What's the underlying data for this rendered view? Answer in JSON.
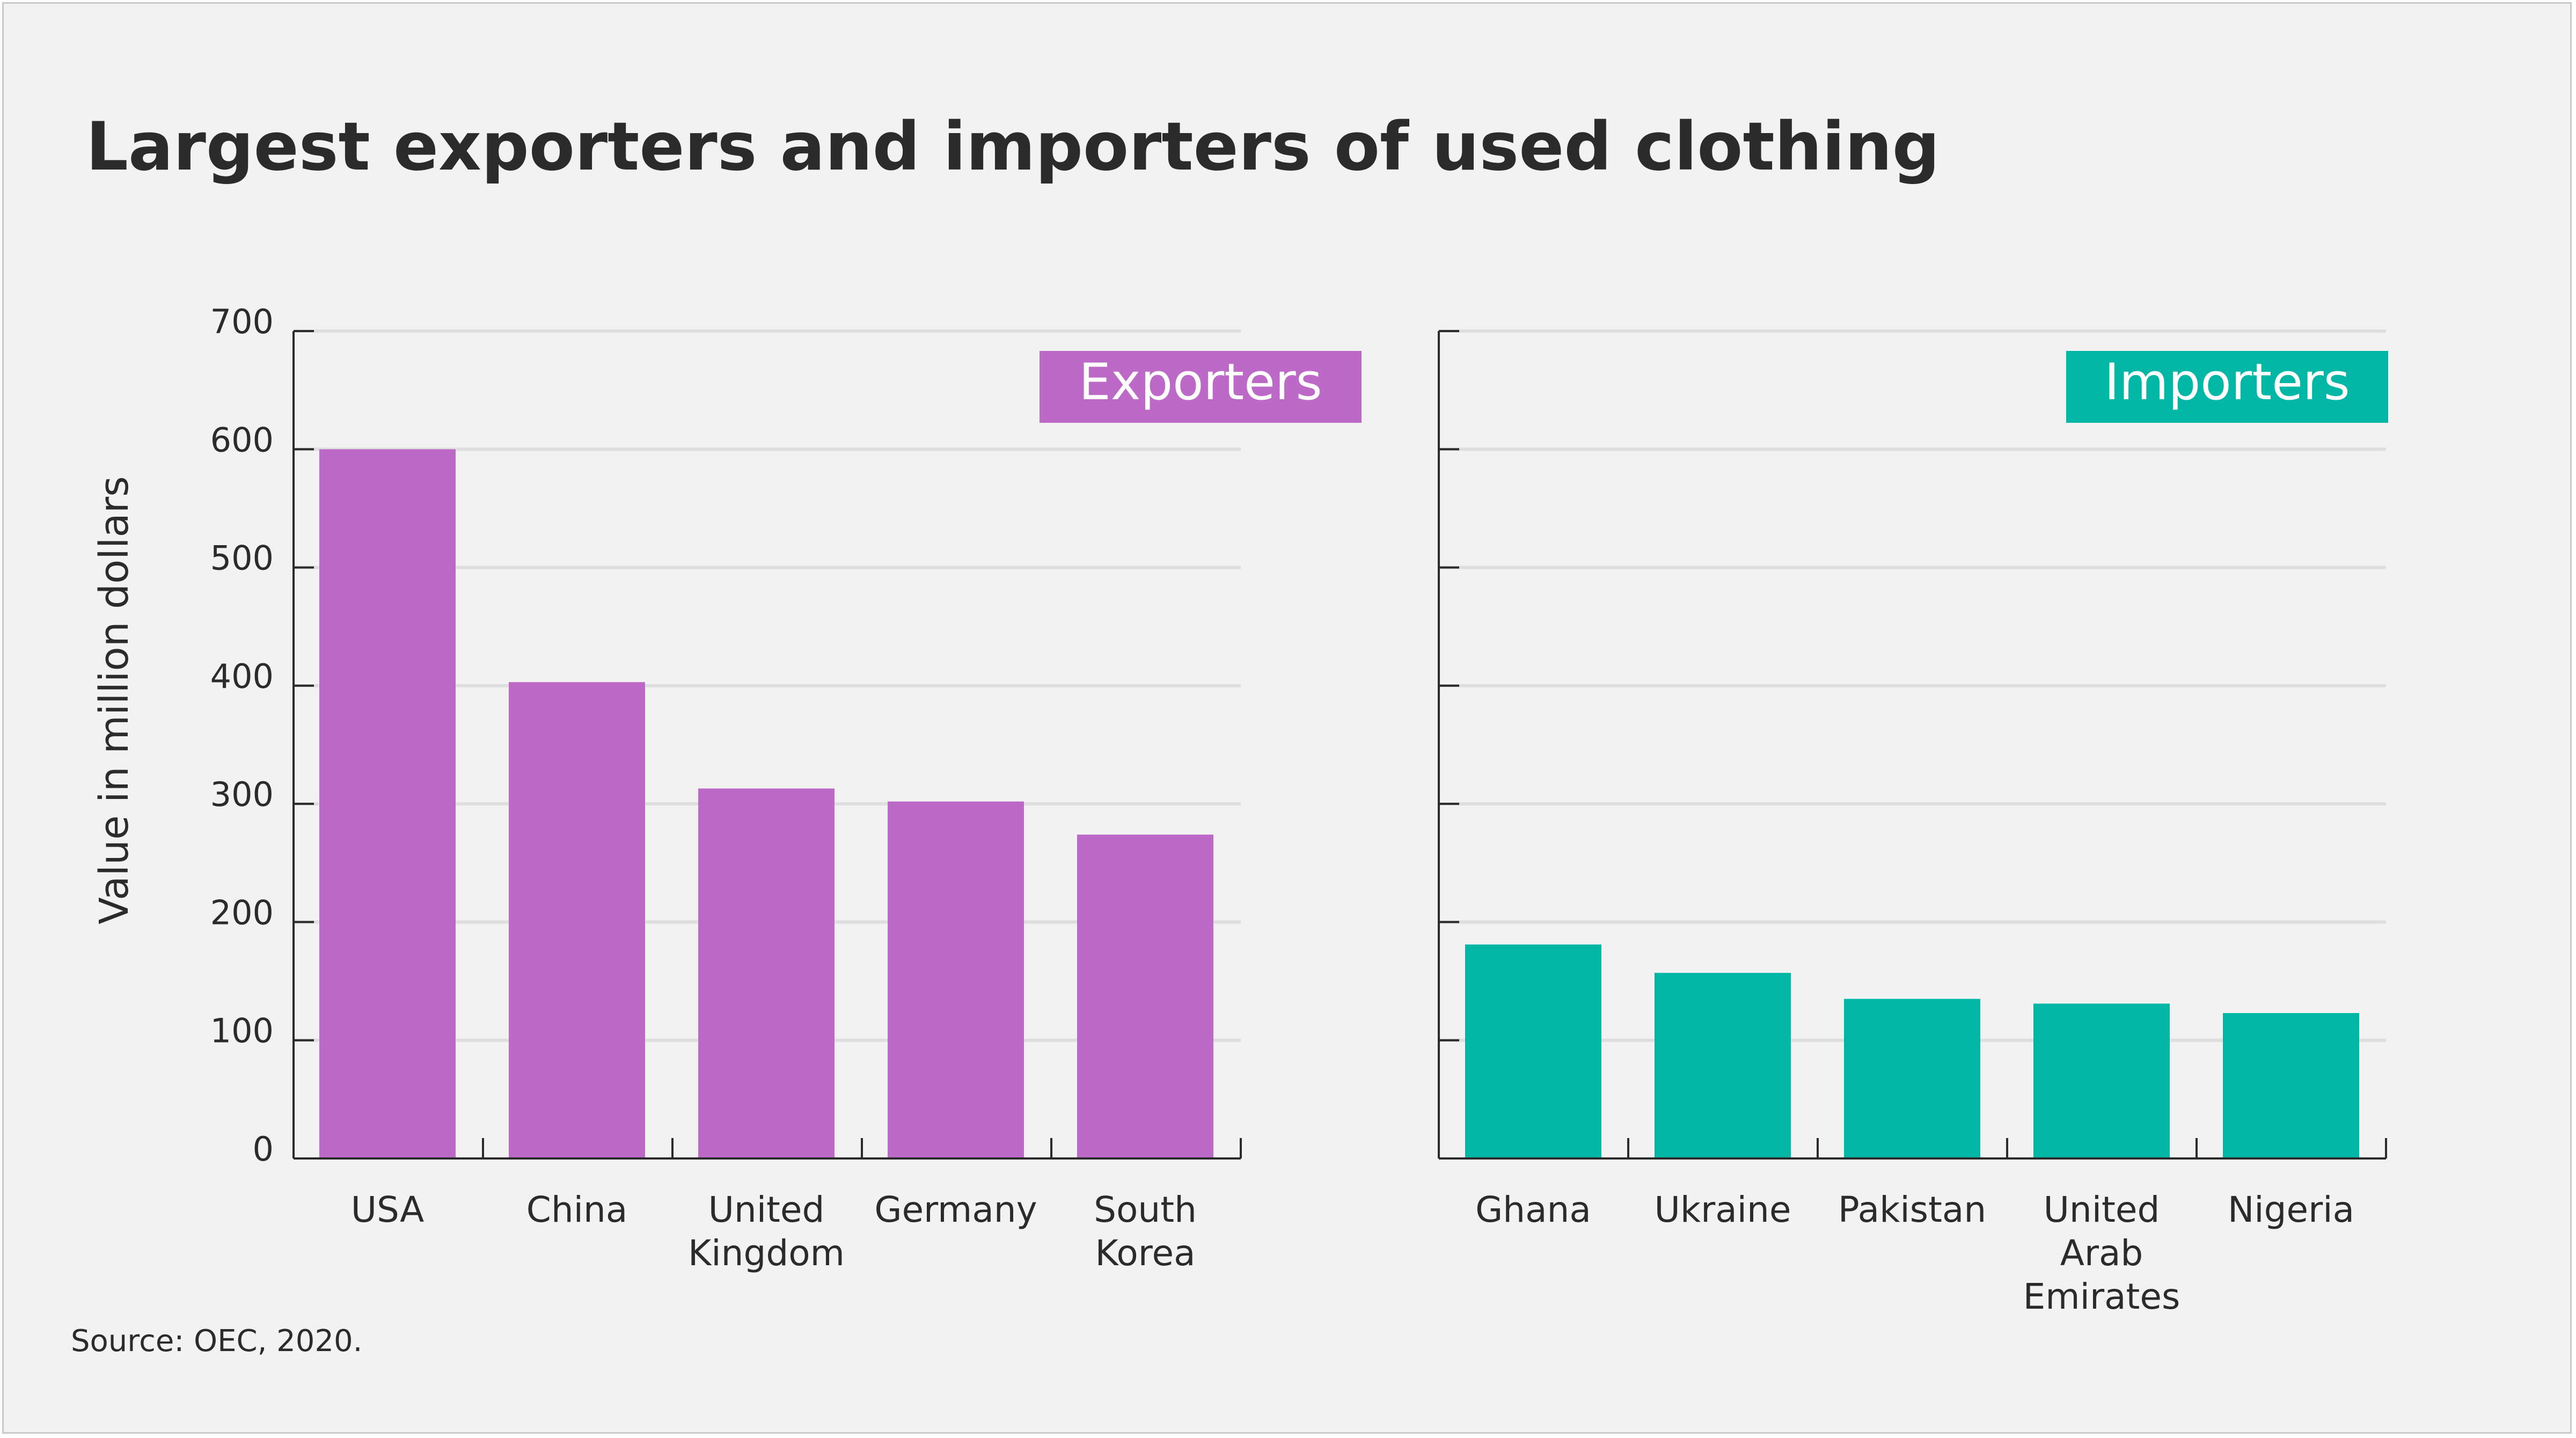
{
  "title": "Largest exporters and importers of used clothing",
  "source": "Source: OEC, 2020.",
  "ylabel": "Value in million dollars",
  "colors": {
    "background": "#f2f2f2",
    "text": "#2b2b2b",
    "grid": "#dedede",
    "exporters": "#bd69c7",
    "importers": "#00b6a5"
  },
  "chart_data": [
    {
      "type": "bar",
      "title": "Exporters",
      "ylabel": "Value in million dollars",
      "ylim": [
        0,
        700
      ],
      "yticks": [
        0,
        100,
        200,
        300,
        400,
        500,
        600,
        700
      ],
      "grid": true,
      "color": "#bd69c7",
      "categories": [
        "USA",
        "China",
        "United Kingdom",
        "Germany",
        "South Korea"
      ],
      "category_lines": [
        [
          "USA"
        ],
        [
          "China"
        ],
        [
          "United",
          "Kingdom"
        ],
        [
          "Germany"
        ],
        [
          "South",
          "Korea"
        ]
      ],
      "values": [
        600,
        403,
        313,
        302,
        274
      ]
    },
    {
      "type": "bar",
      "title": "Importers",
      "ylim": [
        0,
        700
      ],
      "yticks": [
        0,
        100,
        200,
        300,
        400,
        500,
        600,
        700
      ],
      "grid": true,
      "color": "#00b6a5",
      "categories": [
        "Ghana",
        "Ukraine",
        "Pakistan",
        "United Arab Emirates",
        "Nigeria"
      ],
      "category_lines": [
        [
          "Ghana"
        ],
        [
          "Ukraine"
        ],
        [
          "Pakistan"
        ],
        [
          "United",
          "Arab",
          "Emirates"
        ],
        [
          "Nigeria"
        ]
      ],
      "values": [
        181,
        157,
        135,
        131,
        123
      ]
    }
  ]
}
